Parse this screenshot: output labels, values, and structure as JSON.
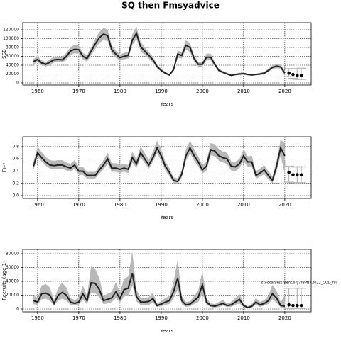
{
  "title": "SQ then Fmsyadvice",
  "annotation": "stockassessment.org: IBPNR2022_COD_fin",
  "chart_data": [
    {
      "type": "line",
      "ylabel": "SSB",
      "xlabel": "Years",
      "x": [
        1959,
        1960,
        1961,
        1962,
        1963,
        1964,
        1965,
        1966,
        1967,
        1968,
        1969,
        1970,
        1971,
        1972,
        1973,
        1974,
        1975,
        1976,
        1977,
        1978,
        1979,
        1980,
        1981,
        1982,
        1983,
        1984,
        1985,
        1986,
        1987,
        1988,
        1989,
        1990,
        1991,
        1992,
        1993,
        1994,
        1995,
        1996,
        1997,
        1998,
        1999,
        2000,
        2001,
        2002,
        2003,
        2004,
        2005,
        2006,
        2007,
        2008,
        2009,
        2010,
        2011,
        2012,
        2013,
        2014,
        2015,
        2016,
        2017,
        2018,
        2019,
        2020
      ],
      "values": [
        48000,
        53000,
        45000,
        42000,
        47000,
        52000,
        53000,
        52000,
        60000,
        72000,
        76000,
        75000,
        60000,
        55000,
        72000,
        88000,
        102000,
        110000,
        107000,
        75000,
        65000,
        57000,
        60000,
        62000,
        97000,
        112000,
        82000,
        72000,
        62000,
        52000,
        37000,
        28000,
        22000,
        18000,
        30000,
        65000,
        62000,
        85000,
        80000,
        55000,
        42000,
        42000,
        58000,
        58000,
        42000,
        28000,
        24000,
        20000,
        17000,
        19000,
        20000,
        21000,
        19000,
        18000,
        19000,
        20000,
        22000,
        28000,
        35000,
        38000,
        36000,
        22000
      ],
      "lower": [
        42000,
        47000,
        40000,
        37000,
        41000,
        46000,
        47000,
        46000,
        53000,
        63000,
        67000,
        66000,
        53000,
        48000,
        63000,
        77000,
        90000,
        97000,
        94000,
        66000,
        57000,
        50000,
        53000,
        55000,
        85000,
        99000,
        72000,
        63000,
        55000,
        46000,
        33000,
        25000,
        19000,
        16000,
        26000,
        57000,
        55000,
        75000,
        70000,
        48000,
        37000,
        37000,
        51000,
        51000,
        37000,
        25000,
        21000,
        18000,
        15000,
        17000,
        18000,
        18000,
        17000,
        16000,
        17000,
        18000,
        19000,
        25000,
        31000,
        33000,
        32000,
        16000
      ],
      "upper": [
        54000,
        60000,
        51000,
        47000,
        53000,
        59000,
        60000,
        59000,
        68000,
        81000,
        86000,
        85000,
        68000,
        62000,
        81000,
        99000,
        115000,
        124000,
        121000,
        85000,
        73000,
        64000,
        68000,
        70000,
        110000,
        127000,
        93000,
        81000,
        70000,
        59000,
        42000,
        32000,
        25000,
        20000,
        34000,
        73000,
        70000,
        96000,
        90000,
        62000,
        47000,
        47000,
        66000,
        66000,
        47000,
        32000,
        27000,
        23000,
        19000,
        21000,
        23000,
        24000,
        21000,
        20000,
        21000,
        23000,
        25000,
        32000,
        40000,
        43000,
        41000,
        28000
      ],
      "forecast": {
        "x": [
          2021,
          2022,
          2023,
          2024
        ],
        "values": [
          22000,
          19000,
          17000,
          17000
        ],
        "low": [
          14000,
          10000,
          8000,
          8000
        ],
        "high": [
          32000,
          32000,
          32000,
          33000
        ]
      },
      "color": "#222222",
      "band_color": "#b8b8b8",
      "point_color": "#000000",
      "xlim": [
        1956.4,
        2026.4
      ],
      "xticks": [
        1960,
        1970,
        1980,
        1990,
        2000,
        2010,
        2020
      ],
      "ylim": [
        -4800,
        136000
      ],
      "yticks": [
        0,
        20000,
        40000,
        60000,
        80000,
        100000,
        120000
      ],
      "grid": true
    },
    {
      "type": "line",
      "ylabel": "F₃₋₇",
      "xlabel": "Years",
      "x": [
        1959,
        1960,
        1961,
        1962,
        1963,
        1964,
        1965,
        1966,
        1967,
        1968,
        1969,
        1970,
        1971,
        1972,
        1973,
        1974,
        1975,
        1976,
        1977,
        1978,
        1979,
        1980,
        1981,
        1982,
        1983,
        1984,
        1985,
        1986,
        1987,
        1988,
        1989,
        1990,
        1991,
        1992,
        1993,
        1994,
        1995,
        1996,
        1997,
        1998,
        1999,
        2000,
        2001,
        2002,
        2003,
        2004,
        2005,
        2006,
        2007,
        2008,
        2009,
        2010,
        2011,
        2012,
        2013,
        2014,
        2015,
        2016,
        2017,
        2018,
        2019,
        2020
      ],
      "values": [
        0.48,
        0.7,
        0.62,
        0.55,
        0.5,
        0.49,
        0.5,
        0.5,
        0.47,
        0.45,
        0.5,
        0.4,
        0.4,
        0.33,
        0.33,
        0.33,
        0.42,
        0.5,
        0.6,
        0.45,
        0.45,
        0.43,
        0.45,
        0.43,
        0.62,
        0.52,
        0.7,
        0.6,
        0.5,
        0.62,
        0.78,
        0.65,
        0.48,
        0.38,
        0.25,
        0.23,
        0.35,
        0.65,
        0.78,
        0.65,
        0.55,
        0.42,
        0.48,
        0.75,
        0.73,
        0.65,
        0.62,
        0.6,
        0.48,
        0.47,
        0.52,
        0.65,
        0.55,
        0.55,
        0.33,
        0.37,
        0.42,
        0.33,
        0.25,
        0.48,
        0.78,
        0.65
      ],
      "lower": [
        0.42,
        0.63,
        0.56,
        0.49,
        0.44,
        0.43,
        0.44,
        0.44,
        0.41,
        0.39,
        0.44,
        0.34,
        0.34,
        0.28,
        0.28,
        0.28,
        0.36,
        0.43,
        0.52,
        0.39,
        0.39,
        0.37,
        0.39,
        0.37,
        0.54,
        0.45,
        0.62,
        0.53,
        0.44,
        0.55,
        0.7,
        0.57,
        0.41,
        0.32,
        0.2,
        0.19,
        0.29,
        0.57,
        0.69,
        0.57,
        0.48,
        0.36,
        0.41,
        0.66,
        0.64,
        0.57,
        0.54,
        0.52,
        0.41,
        0.4,
        0.45,
        0.57,
        0.47,
        0.47,
        0.28,
        0.31,
        0.35,
        0.27,
        0.2,
        0.39,
        0.66,
        0.35
      ],
      "upper": [
        0.55,
        0.8,
        0.71,
        0.63,
        0.58,
        0.57,
        0.58,
        0.58,
        0.54,
        0.52,
        0.58,
        0.47,
        0.47,
        0.39,
        0.39,
        0.39,
        0.49,
        0.58,
        0.7,
        0.53,
        0.53,
        0.5,
        0.52,
        0.5,
        0.72,
        0.6,
        0.8,
        0.7,
        0.58,
        0.72,
        0.9,
        0.76,
        0.56,
        0.45,
        0.3,
        0.28,
        0.42,
        0.76,
        0.9,
        0.76,
        0.64,
        0.5,
        0.56,
        0.86,
        0.84,
        0.76,
        0.72,
        0.7,
        0.56,
        0.55,
        0.6,
        0.76,
        0.64,
        0.65,
        0.4,
        0.44,
        0.5,
        0.4,
        0.31,
        0.57,
        0.92,
        0.85
      ],
      "forecast": {
        "x": [
          2021,
          2022,
          2023,
          2024
        ],
        "values": [
          0.38,
          0.34,
          0.34,
          0.34
        ],
        "low": [
          0.22,
          0.21,
          0.21,
          0.21
        ],
        "high": [
          0.48,
          0.47,
          0.47,
          0.47
        ]
      },
      "color": "#222222",
      "band_color": "#b8b8b8",
      "point_color": "#000000",
      "xlim": [
        1956.4,
        2026.4
      ],
      "xticks": [
        1960,
        1970,
        1980,
        1990,
        2000,
        2010,
        2020
      ],
      "ylim": [
        -0.046,
        0.962
      ],
      "yticks": [
        {
          "value": 0,
          "label": "0.0"
        },
        0.2,
        0.4,
        0.6,
        0.8
      ],
      "grid": true
    },
    {
      "type": "line",
      "ylabel": "Recruits (age 1)",
      "xlabel": "Years",
      "x": [
        1959,
        1960,
        1961,
        1962,
        1963,
        1964,
        1965,
        1966,
        1967,
        1968,
        1969,
        1970,
        1971,
        1972,
        1973,
        1974,
        1975,
        1976,
        1977,
        1978,
        1979,
        1980,
        1981,
        1982,
        1983,
        1984,
        1985,
        1986,
        1987,
        1988,
        1989,
        1990,
        1991,
        1992,
        1993,
        1994,
        1995,
        1996,
        1997,
        1998,
        1999,
        2000,
        2001,
        2002,
        2003,
        2004,
        2005,
        2006,
        2007,
        2008,
        2009,
        2010,
        2011,
        2012,
        2013,
        2014,
        2015,
        2016,
        2017,
        2018,
        2019,
        2020
      ],
      "values": [
        12000,
        10000,
        22000,
        23000,
        20000,
        8000,
        20000,
        24000,
        20000,
        10000,
        8000,
        10000,
        22000,
        12000,
        38000,
        37000,
        28000,
        12000,
        14000,
        16000,
        25000,
        15000,
        28000,
        30000,
        52000,
        18000,
        10000,
        10000,
        11000,
        15000,
        5000,
        7000,
        10000,
        12000,
        25000,
        45000,
        12000,
        6000,
        7000,
        12000,
        17000,
        35000,
        10000,
        5000,
        4000,
        6000,
        8000,
        5000,
        6000,
        10000,
        14000,
        5000,
        2000,
        4000,
        10000,
        6000,
        8000,
        12000,
        22000,
        16000,
        5000,
        4000
      ],
      "lower": [
        7000,
        6000,
        14000,
        15000,
        12000,
        5000,
        12000,
        15000,
        12000,
        6000,
        5000,
        6000,
        14000,
        7000,
        24000,
        23000,
        17000,
        7000,
        8000,
        10000,
        16000,
        9000,
        18000,
        19000,
        34000,
        11000,
        6000,
        6000,
        6000,
        9000,
        3000,
        4000,
        6000,
        7000,
        15000,
        28000,
        7000,
        3000,
        4000,
        7000,
        10000,
        22000,
        6000,
        3000,
        2000,
        3000,
        5000,
        3000,
        3000,
        6000,
        8000,
        3000,
        1000,
        2000,
        6000,
        3000,
        5000,
        7000,
        14000,
        9000,
        2000,
        1000
      ],
      "upper": [
        19000,
        16000,
        34000,
        36000,
        31000,
        13000,
        31000,
        38000,
        31000,
        16000,
        13000,
        16000,
        34000,
        19000,
        62000,
        58000,
        44000,
        19000,
        22000,
        25000,
        39000,
        24000,
        44000,
        47000,
        83000,
        28000,
        16000,
        16000,
        17000,
        24000,
        8000,
        11000,
        16000,
        19000,
        39000,
        72000,
        19000,
        10000,
        11000,
        19000,
        27000,
        55000,
        16000,
        8000,
        7000,
        10000,
        13000,
        8000,
        10000,
        16000,
        22000,
        8000,
        4000,
        7000,
        16000,
        10000,
        13000,
        19000,
        35000,
        26000,
        10000,
        20000
      ],
      "forecast": {
        "x": [
          2021,
          2022,
          2023,
          2024
        ],
        "values": [
          6000,
          5000,
          5000,
          5000
        ],
        "low": [
          1000,
          1000,
          1000,
          1000
        ],
        "high": [
          30000,
          30000,
          30000,
          30000
        ]
      },
      "color": "#222222",
      "band_color": "#b8b8b8",
      "point_color": "#000000",
      "xlim": [
        1956.4,
        2026.4
      ],
      "xticks": [
        1960,
        1970,
        1980,
        1990,
        2000,
        2010,
        2020
      ],
      "ylim": [
        -4100,
        86150
      ],
      "yticks": [
        0,
        20000,
        40000,
        60000,
        80000
      ],
      "grid": true
    }
  ]
}
